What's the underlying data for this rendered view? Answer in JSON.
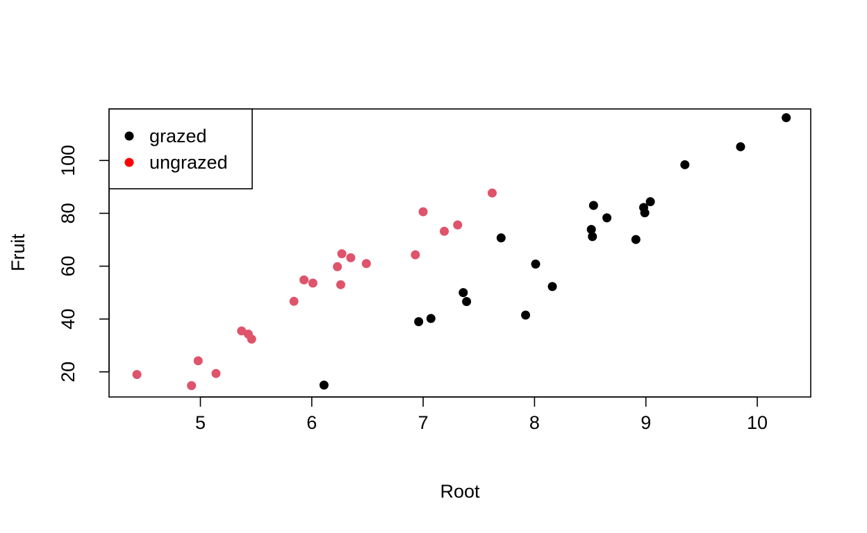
{
  "chart_data": {
    "type": "scatter",
    "title": "",
    "xlabel": "Root",
    "ylabel": "Fruit",
    "xlim": [
      4.18,
      10.48
    ],
    "ylim": [
      10.5,
      119.5
    ],
    "xticks": [
      5,
      6,
      7,
      8,
      9,
      10
    ],
    "yticks": [
      20,
      40,
      60,
      80,
      100
    ],
    "grid": false,
    "legend": {
      "position": "top-left"
    },
    "series": [
      {
        "name": "grazed",
        "color": "#000000",
        "legend_color": "#000000",
        "points": [
          [
            6.11,
            15.0
          ],
          [
            6.96,
            39.0
          ],
          [
            7.07,
            40.2
          ],
          [
            7.36,
            50.0
          ],
          [
            7.39,
            46.6
          ],
          [
            7.7,
            70.7
          ],
          [
            7.92,
            41.5
          ],
          [
            8.01,
            60.8
          ],
          [
            8.16,
            52.3
          ],
          [
            8.51,
            73.9
          ],
          [
            8.52,
            71.2
          ],
          [
            8.53,
            83.0
          ],
          [
            8.65,
            78.3
          ],
          [
            8.91,
            70.1
          ],
          [
            8.98,
            82.2
          ],
          [
            8.99,
            80.2
          ],
          [
            9.04,
            84.4
          ],
          [
            9.35,
            98.4
          ],
          [
            9.85,
            105.2
          ],
          [
            10.26,
            116.2
          ]
        ]
      },
      {
        "name": "ungrazed",
        "color": "#DF536B",
        "legend_color": "#FF0000",
        "points": [
          [
            4.43,
            19.0
          ],
          [
            4.92,
            14.8
          ],
          [
            4.98,
            24.2
          ],
          [
            5.14,
            19.4
          ],
          [
            5.37,
            35.5
          ],
          [
            5.43,
            34.3
          ],
          [
            5.46,
            32.4
          ],
          [
            5.84,
            46.7
          ],
          [
            5.93,
            54.8
          ],
          [
            6.01,
            53.6
          ],
          [
            6.23,
            59.8
          ],
          [
            6.26,
            53.0
          ],
          [
            6.27,
            64.7
          ],
          [
            6.35,
            63.2
          ],
          [
            6.49,
            61.0
          ],
          [
            6.93,
            64.3
          ],
          [
            7.0,
            80.6
          ],
          [
            7.19,
            73.2
          ],
          [
            7.31,
            75.6
          ],
          [
            7.62,
            87.7
          ]
        ]
      }
    ]
  }
}
